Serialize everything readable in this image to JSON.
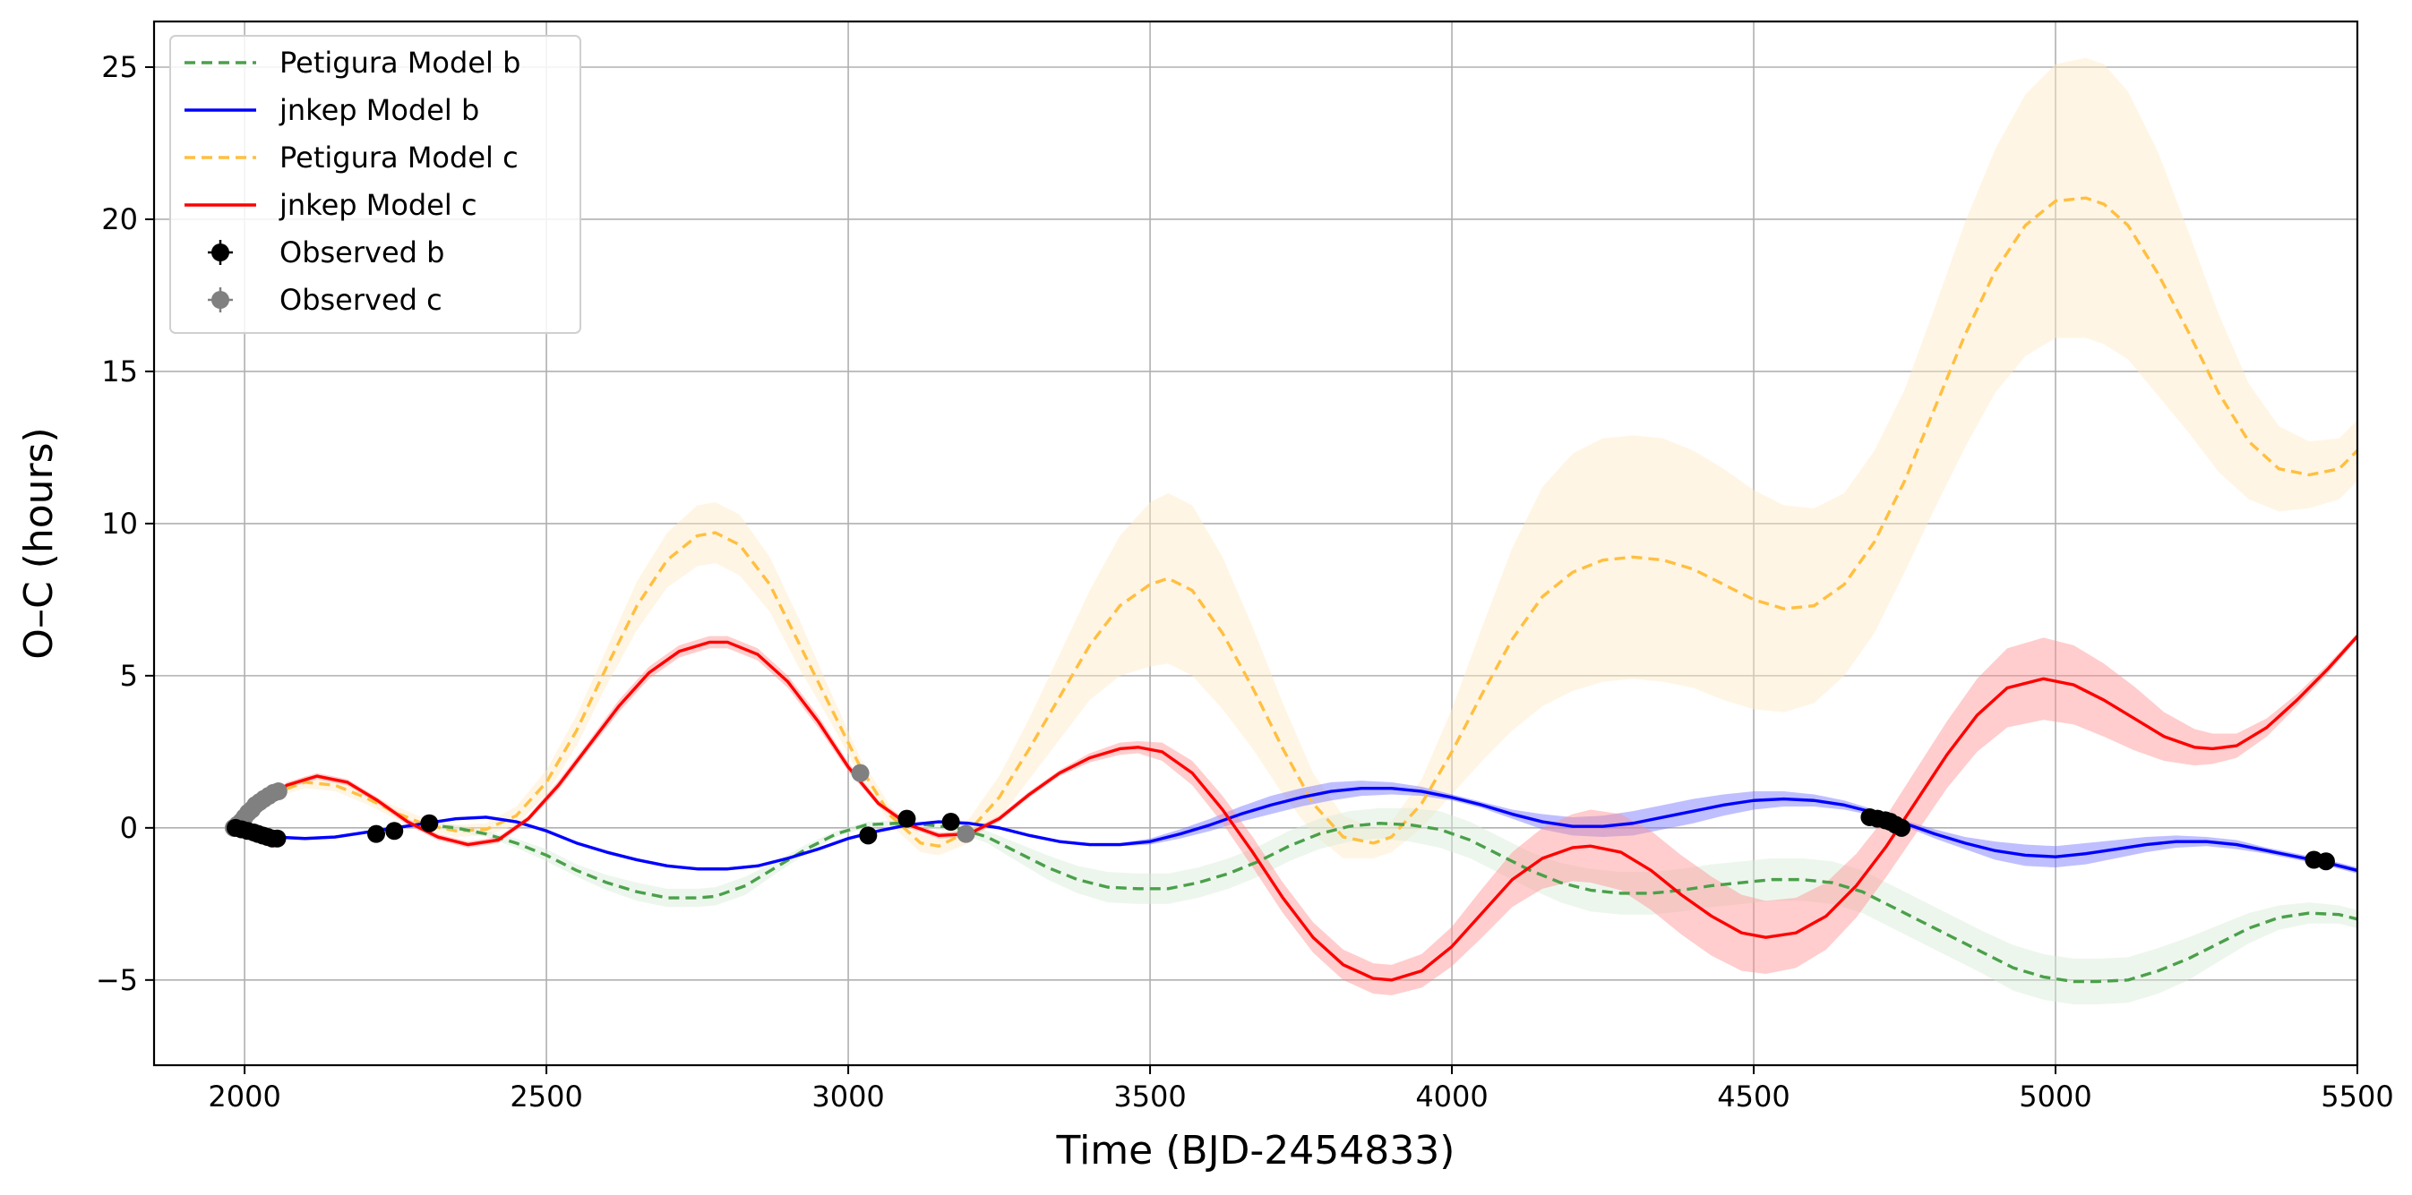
{
  "chart_data": {
    "type": "line",
    "title": "",
    "xlabel": "Time (BJD-2454833)",
    "ylabel": "O–C (hours)",
    "xlim": [
      1850,
      5500
    ],
    "ylim": [
      -7.8,
      26.5
    ],
    "xticks": [
      2000,
      2500,
      3000,
      3500,
      4000,
      4500,
      5000,
      5500
    ],
    "yticks": [
      -5,
      0,
      5,
      10,
      15,
      20,
      25
    ],
    "xtick_labels": [
      "2000",
      "2500",
      "3000",
      "3500",
      "4000",
      "4500",
      "5000",
      "5500"
    ],
    "ytick_labels": [
      "−5",
      "0",
      "5",
      "10",
      "15",
      "20",
      "25"
    ],
    "grid": true,
    "legend_position": "top-left",
    "series": [
      {
        "name": "Petigura Model c",
        "style": "dashed",
        "color": "#ffbf40",
        "band_color": "#ffe9c4",
        "x": [
          1980,
          2030,
          2100,
          2150,
          2200,
          2250,
          2300,
          2350,
          2400,
          2450,
          2500,
          2550,
          2600,
          2650,
          2700,
          2750,
          2780,
          2820,
          2870,
          2920,
          2970,
          3020,
          3070,
          3120,
          3150,
          3200,
          3250,
          3300,
          3350,
          3400,
          3450,
          3500,
          3530,
          3570,
          3620,
          3670,
          3720,
          3770,
          3820,
          3870,
          3900,
          3950,
          4000,
          4050,
          4100,
          4150,
          4200,
          4250,
          4300,
          4350,
          4400,
          4450,
          4500,
          4550,
          4600,
          4650,
          4700,
          4750,
          4800,
          4850,
          4900,
          4950,
          5000,
          5050,
          5080,
          5120,
          5170,
          5220,
          5270,
          5320,
          5370,
          5420,
          5470,
          5500
        ],
        "y": [
          0.0,
          1.0,
          1.5,
          1.4,
          1.0,
          0.5,
          0.1,
          -0.1,
          -0.05,
          0.4,
          1.5,
          3.2,
          5.3,
          7.3,
          8.8,
          9.6,
          9.7,
          9.3,
          8.0,
          6.0,
          4.0,
          2.0,
          0.4,
          -0.5,
          -0.6,
          -0.1,
          1.0,
          2.6,
          4.3,
          6.0,
          7.3,
          8.0,
          8.2,
          7.8,
          6.4,
          4.6,
          2.6,
          0.8,
          -0.3,
          -0.5,
          -0.3,
          0.8,
          2.5,
          4.4,
          6.2,
          7.6,
          8.4,
          8.8,
          8.9,
          8.8,
          8.5,
          8.0,
          7.5,
          7.2,
          7.3,
          8.0,
          9.4,
          11.4,
          13.8,
          16.2,
          18.3,
          19.8,
          20.6,
          20.7,
          20.5,
          19.8,
          18.2,
          16.3,
          14.3,
          12.7,
          11.8,
          11.6,
          11.8,
          12.4
        ],
        "band_halfwidth": [
          0.0,
          0.1,
          0.2,
          0.2,
          0.2,
          0.2,
          0.2,
          0.2,
          0.2,
          0.3,
          0.4,
          0.5,
          0.6,
          0.8,
          0.9,
          1.0,
          1.0,
          1.0,
          0.9,
          0.8,
          0.5,
          0.3,
          0.3,
          0.3,
          0.3,
          0.4,
          0.7,
          1.0,
          1.4,
          1.8,
          2.3,
          2.7,
          2.8,
          2.8,
          2.5,
          2.0,
          1.5,
          1.0,
          0.7,
          0.5,
          0.5,
          0.8,
          1.4,
          2.2,
          3.0,
          3.6,
          3.9,
          4.0,
          4.0,
          4.0,
          3.9,
          3.8,
          3.6,
          3.4,
          3.2,
          3.0,
          3.0,
          3.0,
          3.3,
          3.7,
          4.0,
          4.3,
          4.5,
          4.6,
          4.6,
          4.4,
          4.0,
          3.3,
          2.6,
          1.9,
          1.4,
          1.1,
          1.0,
          1.0
        ]
      },
      {
        "name": "Petigura Model b",
        "style": "dashed",
        "color": "#4aa04a",
        "band_color": "#d8ebd8",
        "x": [
          2300,
          2350,
          2400,
          2450,
          2500,
          2550,
          2600,
          2650,
          2700,
          2750,
          2780,
          2830,
          2880,
          2930,
          2980,
          3030,
          3080,
          3130,
          3180,
          3230,
          3280,
          3330,
          3380,
          3430,
          3480,
          3530,
          3580,
          3630,
          3680,
          3730,
          3780,
          3830,
          3880,
          3930,
          3980,
          4030,
          4080,
          4130,
          4180,
          4230,
          4280,
          4330,
          4380,
          4430,
          4480,
          4530,
          4580,
          4630,
          4680,
          4730,
          4780,
          4830,
          4880,
          4930,
          4980,
          5030,
          5070,
          5120,
          5170,
          5220,
          5270,
          5320,
          5370,
          5420,
          5470,
          5500
        ],
        "y": [
          0.1,
          0.0,
          -0.2,
          -0.5,
          -0.9,
          -1.4,
          -1.8,
          -2.1,
          -2.3,
          -2.3,
          -2.25,
          -1.9,
          -1.3,
          -0.7,
          -0.2,
          0.1,
          0.15,
          0.1,
          0.0,
          -0.3,
          -0.8,
          -1.3,
          -1.7,
          -1.95,
          -2.0,
          -2.0,
          -1.8,
          -1.5,
          -1.1,
          -0.6,
          -0.2,
          0.05,
          0.15,
          0.1,
          -0.05,
          -0.4,
          -0.9,
          -1.4,
          -1.8,
          -2.05,
          -2.15,
          -2.15,
          -2.05,
          -1.9,
          -1.8,
          -1.7,
          -1.7,
          -1.8,
          -2.1,
          -2.6,
          -3.1,
          -3.6,
          -4.1,
          -4.6,
          -4.9,
          -5.05,
          -5.05,
          -5.0,
          -4.7,
          -4.3,
          -3.8,
          -3.3,
          -2.95,
          -2.8,
          -2.85,
          -3.0
        ],
        "band_halfwidth": [
          0.1,
          0.1,
          0.1,
          0.15,
          0.2,
          0.2,
          0.25,
          0.3,
          0.3,
          0.3,
          0.3,
          0.3,
          0.2,
          0.15,
          0.1,
          0.1,
          0.1,
          0.1,
          0.15,
          0.2,
          0.3,
          0.4,
          0.45,
          0.5,
          0.5,
          0.5,
          0.5,
          0.5,
          0.5,
          0.5,
          0.5,
          0.5,
          0.5,
          0.55,
          0.6,
          0.6,
          0.6,
          0.6,
          0.65,
          0.7,
          0.7,
          0.7,
          0.7,
          0.7,
          0.7,
          0.7,
          0.7,
          0.7,
          0.7,
          0.7,
          0.7,
          0.7,
          0.7,
          0.75,
          0.75,
          0.75,
          0.75,
          0.75,
          0.75,
          0.7,
          0.6,
          0.5,
          0.4,
          0.35,
          0.3,
          0.3
        ]
      },
      {
        "name": "jnkep Model b",
        "style": "solid",
        "color": "#0000ff",
        "band_color": "#7070ff",
        "x": [
          1980,
          2000,
          2050,
          2100,
          2150,
          2200,
          2250,
          2300,
          2350,
          2400,
          2450,
          2500,
          2550,
          2600,
          2650,
          2700,
          2750,
          2800,
          2850,
          2900,
          2950,
          3000,
          3050,
          3100,
          3150,
          3200,
          3250,
          3300,
          3350,
          3400,
          3450,
          3500,
          3550,
          3600,
          3650,
          3700,
          3750,
          3800,
          3850,
          3900,
          3950,
          4000,
          4050,
          4100,
          4150,
          4200,
          4250,
          4300,
          4350,
          4400,
          4450,
          4500,
          4550,
          4600,
          4650,
          4700,
          4750,
          4800,
          4850,
          4900,
          4950,
          5000,
          5050,
          5100,
          5150,
          5200,
          5250,
          5300,
          5350,
          5400,
          5450,
          5500
        ],
        "y": [
          0.0,
          -0.1,
          -0.3,
          -0.35,
          -0.3,
          -0.15,
          0.0,
          0.15,
          0.3,
          0.35,
          0.2,
          -0.1,
          -0.5,
          -0.8,
          -1.05,
          -1.25,
          -1.35,
          -1.35,
          -1.25,
          -1.0,
          -0.7,
          -0.35,
          -0.1,
          0.1,
          0.2,
          0.15,
          0.0,
          -0.25,
          -0.45,
          -0.55,
          -0.55,
          -0.45,
          -0.2,
          0.1,
          0.45,
          0.75,
          1.0,
          1.2,
          1.3,
          1.3,
          1.2,
          1.0,
          0.75,
          0.45,
          0.2,
          0.05,
          0.05,
          0.15,
          0.35,
          0.55,
          0.75,
          0.9,
          0.95,
          0.9,
          0.75,
          0.5,
          0.15,
          -0.2,
          -0.5,
          -0.75,
          -0.9,
          -0.95,
          -0.85,
          -0.7,
          -0.55,
          -0.45,
          -0.45,
          -0.55,
          -0.75,
          -0.95,
          -1.15,
          -1.4
        ],
        "band_halfwidth": [
          0.0,
          0.05,
          0.05,
          0.05,
          0.05,
          0.05,
          0.05,
          0.05,
          0.05,
          0.05,
          0.05,
          0.05,
          0.05,
          0.05,
          0.05,
          0.05,
          0.05,
          0.05,
          0.05,
          0.05,
          0.05,
          0.05,
          0.05,
          0.05,
          0.05,
          0.05,
          0.05,
          0.05,
          0.05,
          0.05,
          0.05,
          0.1,
          0.15,
          0.2,
          0.25,
          0.3,
          0.3,
          0.3,
          0.25,
          0.2,
          0.15,
          0.1,
          0.1,
          0.15,
          0.25,
          0.3,
          0.35,
          0.4,
          0.4,
          0.4,
          0.35,
          0.3,
          0.25,
          0.2,
          0.15,
          0.1,
          0.1,
          0.15,
          0.2,
          0.3,
          0.35,
          0.35,
          0.35,
          0.3,
          0.25,
          0.2,
          0.15,
          0.15,
          0.1,
          0.1,
          0.1,
          0.1
        ]
      },
      {
        "name": "jnkep Model c",
        "style": "solid",
        "color": "#ff0000",
        "band_color": "#ff9090",
        "x": [
          1980,
          2020,
          2070,
          2120,
          2170,
          2220,
          2270,
          2320,
          2370,
          2420,
          2470,
          2520,
          2570,
          2620,
          2670,
          2720,
          2770,
          2800,
          2850,
          2900,
          2950,
          3000,
          3050,
          3100,
          3150,
          3200,
          3250,
          3300,
          3350,
          3400,
          3450,
          3480,
          3520,
          3570,
          3620,
          3670,
          3720,
          3770,
          3820,
          3870,
          3900,
          3950,
          4000,
          4050,
          4100,
          4150,
          4200,
          4230,
          4280,
          4330,
          4380,
          4430,
          4480,
          4520,
          4570,
          4620,
          4670,
          4720,
          4770,
          4820,
          4870,
          4920,
          4980,
          5030,
          5080,
          5130,
          5180,
          5230,
          5260,
          5300,
          5350,
          5400,
          5450,
          5500
        ],
        "y": [
          0.0,
          0.7,
          1.4,
          1.7,
          1.5,
          0.9,
          0.2,
          -0.3,
          -0.55,
          -0.4,
          0.3,
          1.4,
          2.7,
          4.0,
          5.1,
          5.8,
          6.1,
          6.1,
          5.7,
          4.8,
          3.5,
          2.0,
          0.8,
          0.1,
          -0.25,
          -0.2,
          0.3,
          1.1,
          1.8,
          2.3,
          2.6,
          2.65,
          2.5,
          1.8,
          0.6,
          -0.8,
          -2.3,
          -3.6,
          -4.5,
          -4.95,
          -5.0,
          -4.7,
          -3.9,
          -2.8,
          -1.7,
          -1.0,
          -0.65,
          -0.6,
          -0.8,
          -1.4,
          -2.2,
          -2.9,
          -3.45,
          -3.6,
          -3.45,
          -2.9,
          -1.9,
          -0.6,
          0.9,
          2.4,
          3.7,
          4.6,
          4.9,
          4.7,
          4.2,
          3.6,
          3.0,
          2.65,
          2.6,
          2.7,
          3.3,
          4.2,
          5.2,
          6.3
        ],
        "band_halfwidth": [
          0.0,
          0.05,
          0.1,
          0.1,
          0.1,
          0.1,
          0.1,
          0.1,
          0.1,
          0.1,
          0.1,
          0.15,
          0.15,
          0.2,
          0.2,
          0.2,
          0.2,
          0.2,
          0.2,
          0.2,
          0.2,
          0.15,
          0.1,
          0.1,
          0.1,
          0.1,
          0.1,
          0.1,
          0.1,
          0.15,
          0.2,
          0.2,
          0.3,
          0.4,
          0.45,
          0.5,
          0.5,
          0.5,
          0.5,
          0.5,
          0.5,
          0.55,
          0.65,
          0.8,
          0.9,
          1.0,
          1.1,
          1.2,
          1.25,
          1.3,
          1.3,
          1.3,
          1.25,
          1.2,
          1.15,
          1.1,
          1.05,
          1.0,
          1.05,
          1.1,
          1.2,
          1.3,
          1.35,
          1.3,
          1.2,
          1.05,
          0.8,
          0.6,
          0.5,
          0.4,
          0.3,
          0.2,
          0.15,
          0.1
        ]
      }
    ],
    "observed": [
      {
        "name": "Observed b",
        "color": "#000000",
        "x": [
          1985,
          1995,
          2005,
          2015,
          2022,
          2030,
          2038,
          2046,
          2054,
          2218,
          2248,
          2306,
          3033,
          3097,
          3170,
          4692,
          4705,
          4718,
          4726,
          4735,
          4745,
          5428,
          5448
        ],
        "y": [
          0.0,
          -0.05,
          -0.1,
          -0.15,
          -0.2,
          -0.25,
          -0.3,
          -0.35,
          -0.35,
          -0.2,
          -0.1,
          0.15,
          -0.25,
          0.3,
          0.2,
          0.35,
          0.3,
          0.25,
          0.2,
          0.1,
          0.0,
          -1.05,
          -1.1
        ]
      },
      {
        "name": "Observed c",
        "color": "#808080",
        "x": [
          1982,
          1988,
          1994,
          2000,
          2006,
          2012,
          2018,
          2025,
          2032,
          2040,
          2048,
          2056,
          3020,
          3195
        ],
        "y": [
          0.0,
          0.1,
          0.2,
          0.35,
          0.5,
          0.6,
          0.75,
          0.85,
          0.95,
          1.05,
          1.15,
          1.2,
          1.8,
          -0.2
        ]
      }
    ],
    "legend": [
      {
        "label": "Petigura Model b",
        "kind": "dashed",
        "color": "#4aa04a"
      },
      {
        "label": "jnkep Model b",
        "kind": "solid",
        "color": "#0000ff"
      },
      {
        "label": "Petigura Model c",
        "kind": "dashed",
        "color": "#ffbf40"
      },
      {
        "label": "jnkep Model c",
        "kind": "solid",
        "color": "#ff0000"
      },
      {
        "label": "Observed b",
        "kind": "marker",
        "color": "#000000"
      },
      {
        "label": "Observed c",
        "kind": "marker",
        "color": "#808080"
      }
    ]
  }
}
